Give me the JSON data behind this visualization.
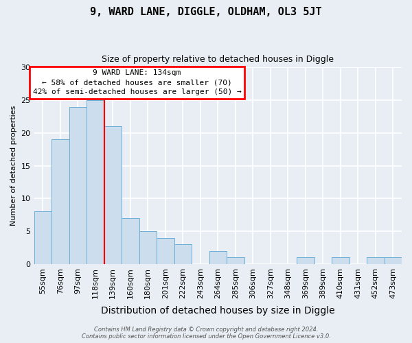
{
  "title": "9, WARD LANE, DIGGLE, OLDHAM, OL3 5JT",
  "subtitle": "Size of property relative to detached houses in Diggle",
  "xlabel": "Distribution of detached houses by size in Diggle",
  "ylabel": "Number of detached properties",
  "categories": [
    "55sqm",
    "76sqm",
    "97sqm",
    "118sqm",
    "139sqm",
    "160sqm",
    "180sqm",
    "201sqm",
    "222sqm",
    "243sqm",
    "264sqm",
    "285sqm",
    "306sqm",
    "327sqm",
    "348sqm",
    "369sqm",
    "389sqm",
    "410sqm",
    "431sqm",
    "452sqm",
    "473sqm"
  ],
  "values": [
    8,
    19,
    24,
    25,
    21,
    7,
    5,
    4,
    3,
    0,
    2,
    1,
    0,
    0,
    0,
    1,
    0,
    1,
    0,
    1,
    1
  ],
  "bar_color": "#ccdded",
  "bar_edge_color": "#6aaed6",
  "vline_color": "red",
  "vline_position": 3.5,
  "ylim": [
    0,
    30
  ],
  "yticks": [
    0,
    5,
    10,
    15,
    20,
    25,
    30
  ],
  "annotation_text": "9 WARD LANE: 134sqm\n← 58% of detached houses are smaller (70)\n42% of semi-detached houses are larger (50) →",
  "annotation_box_facecolor": "white",
  "annotation_box_edgecolor": "red",
  "footer_line1": "Contains HM Land Registry data © Crown copyright and database right 2024.",
  "footer_line2": "Contains public sector information licensed under the Open Government Licence v3.0.",
  "background_color": "#e8eef4",
  "grid_color": "white",
  "title_fontsize": 11,
  "subtitle_fontsize": 9,
  "ylabel_fontsize": 8,
  "xlabel_fontsize": 10,
  "tick_fontsize": 8,
  "annot_fontsize": 8
}
